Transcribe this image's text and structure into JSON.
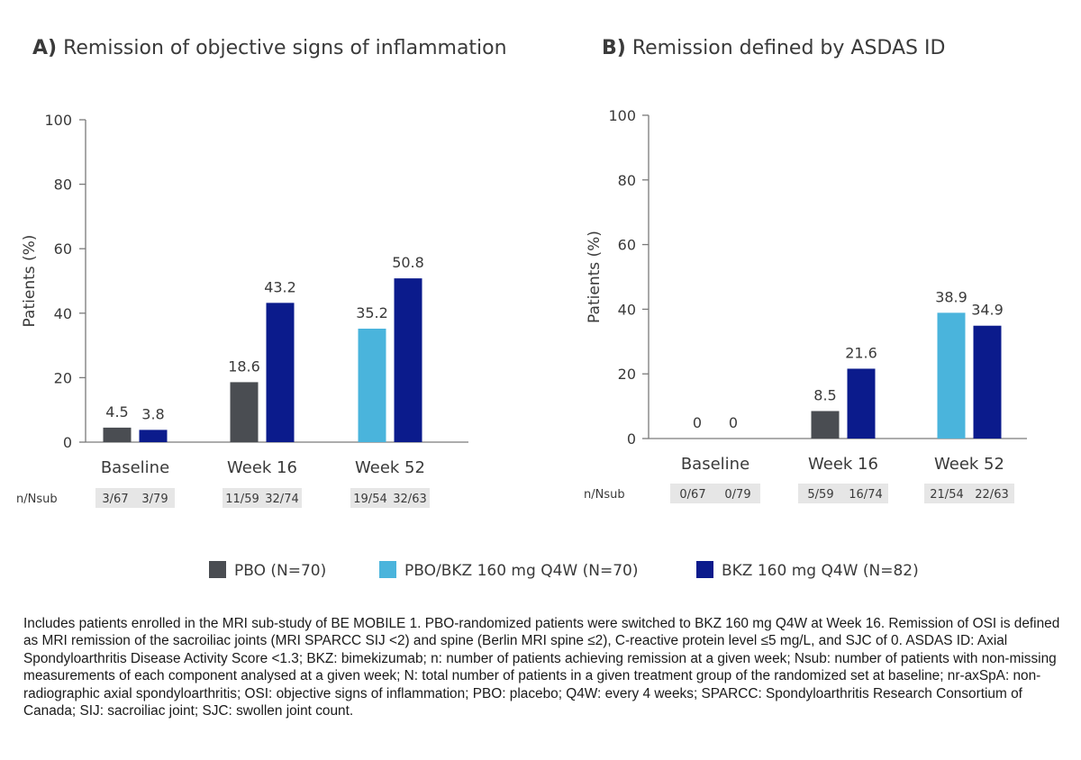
{
  "colors": {
    "pbo": "#4a4d52",
    "pbo_bkz": "#4ab4dc",
    "bkz": "#0b1b8c",
    "axis": "#7a7a7a",
    "text": "#3a3a3a"
  },
  "chart_data": [
    {
      "type": "bar",
      "panel_letter": "A)",
      "title": "Remission of objective signs of inflammation",
      "ylabel": "Patients (%)",
      "ylim": [
        0,
        100
      ],
      "yticks": [
        "0",
        "20",
        "40",
        "60",
        "80",
        "100"
      ],
      "categories": [
        "Baseline",
        "Week 16",
        "Week 52"
      ],
      "bars": [
        [
          {
            "series": "pbo",
            "value": 4.5,
            "label": "4.5"
          },
          {
            "series": "bkz",
            "value": 3.8,
            "label": "3.8"
          }
        ],
        [
          {
            "series": "pbo",
            "value": 18.6,
            "label": "18.6"
          },
          {
            "series": "bkz",
            "value": 43.2,
            "label": "43.2"
          }
        ],
        [
          {
            "series": "pbo_bkz",
            "value": 35.2,
            "label": "35.2"
          },
          {
            "series": "bkz",
            "value": 50.8,
            "label": "50.8"
          }
        ]
      ],
      "nsub_label": "n/Nsub",
      "nsub": [
        [
          "3/67",
          "3/79"
        ],
        [
          "11/59",
          "32/74"
        ],
        [
          "19/54",
          "32/63"
        ]
      ]
    },
    {
      "type": "bar",
      "panel_letter": "B)",
      "title": "Remission defined by ASDAS ID",
      "ylabel": "Patients (%)",
      "ylim": [
        0,
        100
      ],
      "yticks": [
        "0",
        "20",
        "40",
        "60",
        "80",
        "100"
      ],
      "categories": [
        "Baseline",
        "Week 16",
        "Week 52"
      ],
      "bars": [
        [
          {
            "series": "pbo",
            "value": 0,
            "label": "0"
          },
          {
            "series": "bkz",
            "value": 0,
            "label": "0"
          }
        ],
        [
          {
            "series": "pbo",
            "value": 8.5,
            "label": "8.5"
          },
          {
            "series": "bkz",
            "value": 21.6,
            "label": "21.6"
          }
        ],
        [
          {
            "series": "pbo_bkz",
            "value": 38.9,
            "label": "38.9"
          },
          {
            "series": "bkz",
            "value": 34.9,
            "label": "34.9"
          }
        ]
      ],
      "nsub_label": "n/Nsub",
      "nsub": [
        [
          "0/67",
          "0/79"
        ],
        [
          "5/59",
          "16/74"
        ],
        [
          "21/54",
          "22/63"
        ]
      ]
    }
  ],
  "legend": [
    {
      "series": "pbo",
      "label": "PBO (N=70)"
    },
    {
      "series": "pbo_bkz",
      "label": "PBO/BKZ 160 mg Q4W (N=70)"
    },
    {
      "series": "bkz",
      "label": "BKZ 160 mg Q4W (N=82)"
    }
  ],
  "footnote": "Includes patients enrolled in the MRI sub-study of BE MOBILE 1. PBO-randomized patients were switched to BKZ 160 mg Q4W at Week 16. Remission of OSI is defined as MRI remission of the sacroiliac joints (MRI SPARCC SIJ <2) and spine (Berlin MRI spine ≤2), C-reactive protein level ≤5 mg/L, and SJC of 0. ASDAS ID: Axial Spondyloarthritis Disease Activity Score <1.3; BKZ: bimekizumab; n: number of patients achieving remission at a given week; Nsub: number of patients with non-missing measurements of each component analysed at a given week; N: total number of patients in a given treatment group of the randomized set at baseline; nr-axSpA: non-radiographic axial spondyloarthritis; OSI: objective signs of inflammation; PBO: placebo; Q4W: every 4 weeks; SPARCC: Spondyloarthritis Research Consortium of Canada; SIJ: sacroiliac joint; SJC: swollen joint count."
}
